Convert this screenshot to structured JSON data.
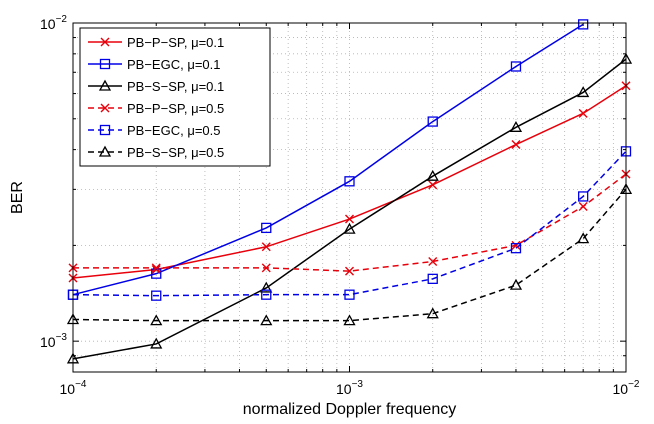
{
  "chart_data": {
    "type": "line",
    "title": "",
    "xlabel": "normalized Doppler frequency",
    "ylabel": "BER",
    "x_scale": "log",
    "y_scale": "log",
    "xlim": [
      0.0001,
      0.01
    ],
    "ylim": [
      0.0008,
      0.01
    ],
    "grid": true,
    "legend_position": "top-left",
    "x_tick_labels": [
      {
        "base": "10",
        "exp": "−4",
        "value": 0.0001
      },
      {
        "base": "10",
        "exp": "−3",
        "value": 0.001
      },
      {
        "base": "10",
        "exp": "−2",
        "value": 0.01
      }
    ],
    "y_tick_labels": [
      {
        "base": "10",
        "exp": "−3",
        "value": 0.001
      },
      {
        "base": "10",
        "exp": "−2",
        "value": 0.01
      }
    ],
    "series": [
      {
        "name": "PB−P−SP, μ=0.1",
        "color": "#e8000b",
        "dash": "solid",
        "marker": "x",
        "x": [
          0.0001,
          0.0002,
          0.0005,
          0.001,
          0.002,
          0.004,
          0.007,
          0.01
        ],
        "y": [
          0.00158,
          0.00168,
          0.00198,
          0.00242,
          0.0031,
          0.00415,
          0.0052,
          0.00635
        ]
      },
      {
        "name": "PB−EGC, μ=0.1",
        "color": "#0000e6",
        "dash": "solid",
        "marker": "square",
        "x": [
          0.0001,
          0.0002,
          0.0005,
          0.001,
          0.002,
          0.004,
          0.007
        ],
        "y": [
          0.0014,
          0.00163,
          0.00227,
          0.00318,
          0.0049,
          0.0073,
          0.0099
        ]
      },
      {
        "name": "PB−S−SP, μ=0.1",
        "color": "#000000",
        "dash": "solid",
        "marker": "triangle",
        "x": [
          0.0001,
          0.0002,
          0.0005,
          0.001,
          0.002,
          0.004,
          0.007,
          0.01
        ],
        "y": [
          0.00088,
          0.00098,
          0.00147,
          0.00225,
          0.0033,
          0.0047,
          0.00605,
          0.0077
        ]
      },
      {
        "name": "PB−P−SP, μ=0.5",
        "color": "#e8000b",
        "dash": "dashed",
        "marker": "x",
        "x": [
          0.0001,
          0.0002,
          0.0005,
          0.001,
          0.002,
          0.004,
          0.007,
          0.01
        ],
        "y": [
          0.0017,
          0.0017,
          0.0017,
          0.00166,
          0.00178,
          0.002,
          0.00265,
          0.00335
        ]
      },
      {
        "name": "PB−EGC, μ=0.5",
        "color": "#0000e6",
        "dash": "dashed",
        "marker": "square",
        "x": [
          0.0001,
          0.0002,
          0.0005,
          0.001,
          0.002,
          0.004,
          0.007,
          0.01
        ],
        "y": [
          0.0014,
          0.00139,
          0.0014,
          0.0014,
          0.00157,
          0.00196,
          0.00285,
          0.00395
        ]
      },
      {
        "name": "PB−S−SP, μ=0.5",
        "color": "#000000",
        "dash": "dashed",
        "marker": "triangle",
        "x": [
          0.0001,
          0.0002,
          0.0005,
          0.001,
          0.002,
          0.004,
          0.007,
          0.01
        ],
        "y": [
          0.00117,
          0.00116,
          0.00116,
          0.00116,
          0.00122,
          0.0015,
          0.0021,
          0.003
        ]
      }
    ]
  }
}
